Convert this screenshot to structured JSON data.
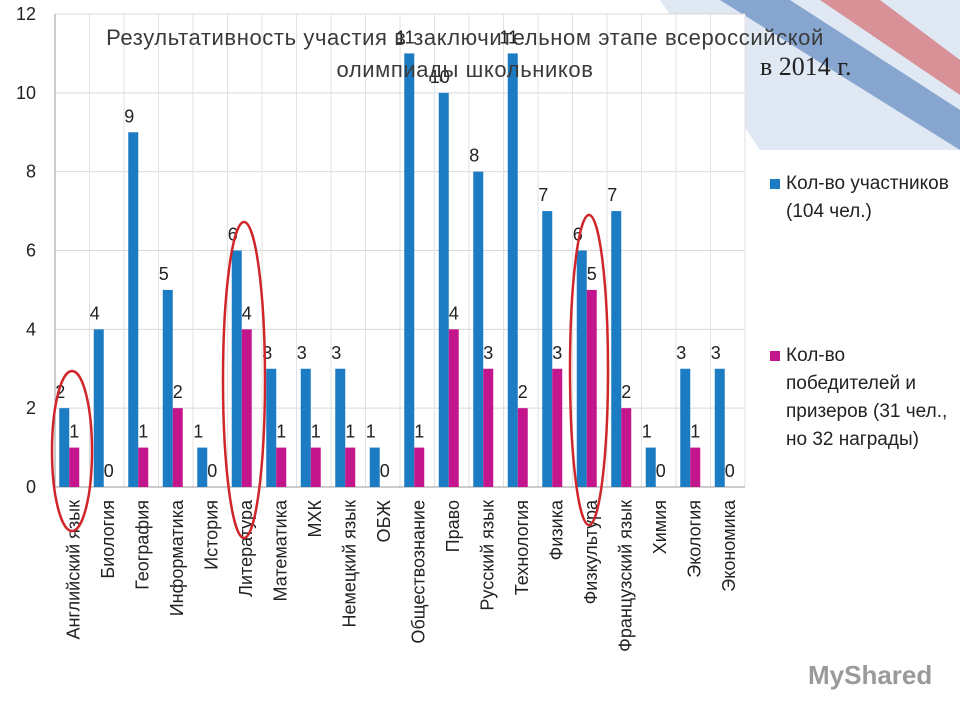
{
  "chart_data": {
    "type": "bar",
    "title": "Результативность участия в заключительном этапе всероссийской олимпиады школьников",
    "subtitle": "в 2014 г.",
    "watermark": "MyShared",
    "categories": [
      "Английский язык",
      "Биология",
      "География",
      "Информатика",
      "История",
      "Литература",
      "Математика",
      "МХК",
      "Немецкий язык",
      "ОБЖ",
      "Обществознание",
      "Право",
      "Русский язык",
      "Технология",
      "Физика",
      "Физкультура",
      "Французский язык",
      "Химия",
      "Экология",
      "Экономика"
    ],
    "series": [
      {
        "name": "Кол-во участников (104 чел.)",
        "color": "#1b7cc4",
        "values": [
          2,
          4,
          9,
          5,
          1,
          6,
          3,
          3,
          3,
          1,
          11,
          10,
          8,
          11,
          7,
          6,
          7,
          1,
          3,
          3
        ]
      },
      {
        "name": "Кол-во победителей и призеров (31 чел., но 32 награды)",
        "color": "#c4168c",
        "values": [
          1,
          0,
          1,
          2,
          0,
          4,
          1,
          1,
          1,
          0,
          1,
          4,
          3,
          2,
          3,
          5,
          2,
          0,
          1,
          0
        ]
      }
    ],
    "ylim": [
      0,
      12
    ],
    "yticks": [
      0,
      2,
      4,
      6,
      8,
      10,
      12
    ],
    "grid": true,
    "legend": "right"
  }
}
